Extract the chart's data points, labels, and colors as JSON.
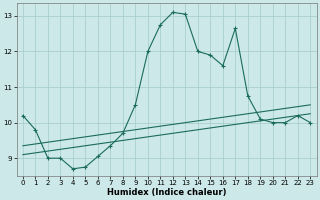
{
  "xlabel": "Humidex (Indice chaleur)",
  "bg_color": "#cce8e8",
  "grid_color": "#aacece",
  "line_color": "#1a6b5a",
  "x_ticks": [
    0,
    1,
    2,
    3,
    4,
    5,
    6,
    7,
    8,
    9,
    10,
    11,
    12,
    13,
    14,
    15,
    16,
    17,
    18,
    19,
    20,
    21,
    22,
    23
  ],
  "y_ticks": [
    9,
    10,
    11,
    12,
    13
  ],
  "ylim": [
    8.5,
    13.35
  ],
  "xlim": [
    -0.5,
    23.5
  ],
  "series1_x": [
    0,
    1,
    2,
    3,
    4,
    5,
    6,
    7,
    8,
    9,
    10,
    11,
    12,
    13,
    14,
    15,
    16,
    17,
    18,
    19,
    20,
    21,
    22,
    23
  ],
  "series1_y": [
    10.2,
    9.8,
    9.0,
    9.0,
    8.7,
    8.75,
    9.05,
    9.35,
    9.7,
    10.5,
    12.0,
    12.75,
    13.1,
    13.05,
    12.0,
    11.9,
    11.6,
    12.65,
    10.75,
    10.1,
    10.0,
    10.0,
    10.2,
    10.0
  ],
  "series2_x": [
    0,
    1,
    2,
    3,
    4,
    5,
    6,
    7,
    8,
    9,
    10,
    11,
    12,
    13,
    14,
    15,
    16,
    17,
    18,
    19,
    20,
    21,
    22,
    23
  ],
  "series2_y": [
    9.1,
    9.15,
    9.2,
    9.25,
    9.3,
    9.35,
    9.4,
    9.45,
    9.5,
    9.55,
    9.6,
    9.65,
    9.7,
    9.75,
    9.8,
    9.85,
    9.9,
    9.95,
    10.0,
    10.05,
    10.1,
    10.15,
    10.2,
    10.25
  ],
  "series3_x": [
    0,
    1,
    2,
    3,
    4,
    5,
    6,
    7,
    8,
    9,
    10,
    11,
    12,
    13,
    14,
    15,
    16,
    17,
    18,
    19,
    20,
    21,
    22,
    23
  ],
  "series3_y": [
    9.35,
    9.4,
    9.45,
    9.5,
    9.55,
    9.6,
    9.65,
    9.7,
    9.75,
    9.8,
    9.85,
    9.9,
    9.95,
    10.0,
    10.05,
    10.1,
    10.15,
    10.2,
    10.25,
    10.3,
    10.35,
    10.4,
    10.45,
    10.5
  ]
}
